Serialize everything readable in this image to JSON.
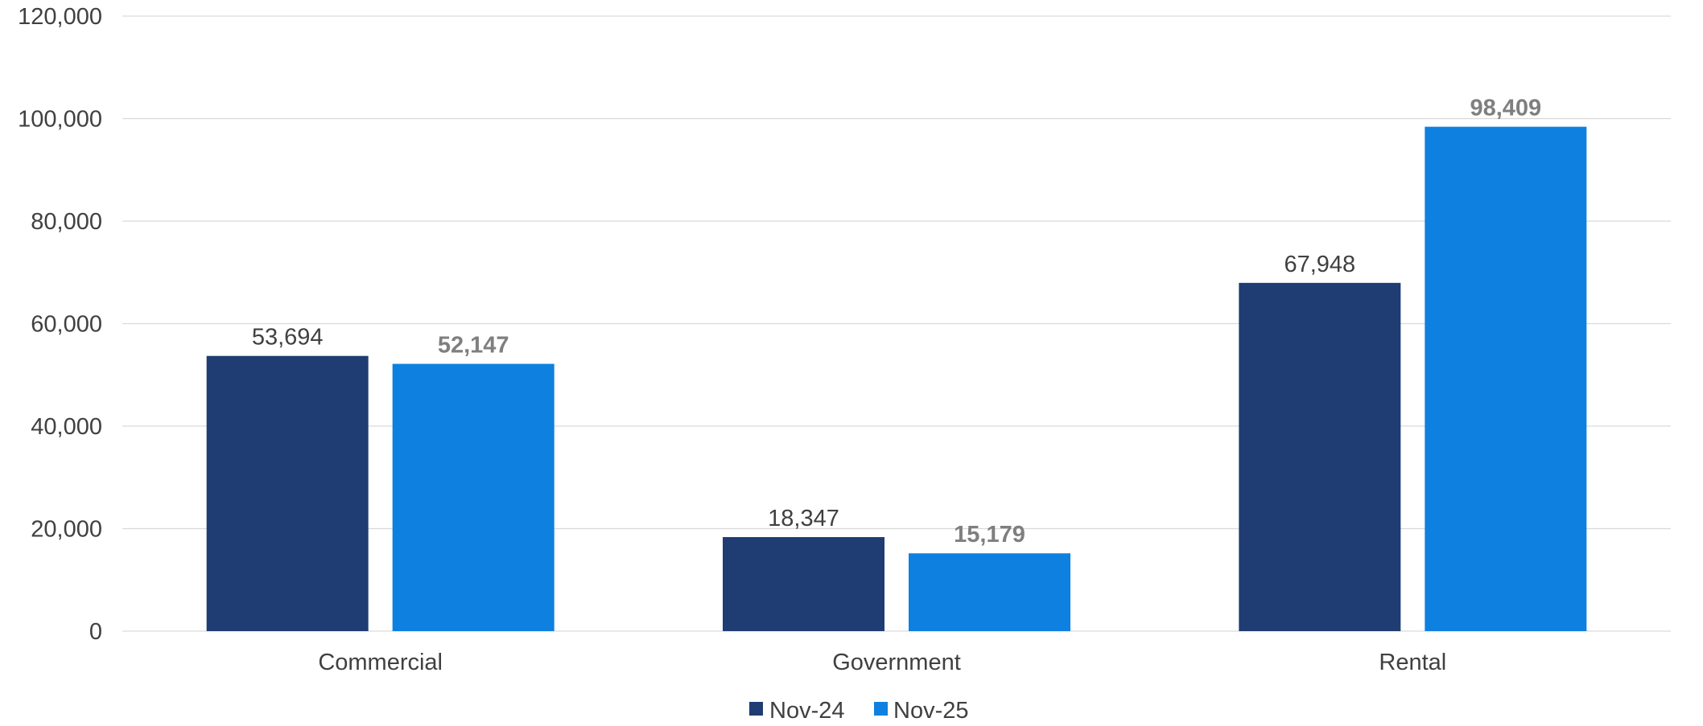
{
  "chart_data": {
    "type": "bar",
    "title": "",
    "xlabel": "",
    "ylabel": "",
    "categories": [
      "Commercial",
      "Government",
      "Rental"
    ],
    "series": [
      {
        "name": "Nov-24",
        "values": [
          53694,
          18347,
          67948
        ],
        "color": "#1F3C73",
        "label_style": "normal"
      },
      {
        "name": "Nov-25",
        "values": [
          52147,
          15179,
          98409
        ],
        "color": "#0E80E0",
        "label_style": "bold"
      }
    ],
    "ylim": [
      0,
      120000
    ],
    "yticks": [
      0,
      20000,
      40000,
      60000,
      80000,
      100000,
      120000
    ],
    "ytick_labels": [
      "0",
      "20,000",
      "40,000",
      "60,000",
      "80,000",
      "100,000",
      "120,000"
    ],
    "data_labels": [
      [
        "53,694",
        "18,347",
        "67,948"
      ],
      [
        "52,147",
        "15,179",
        "98,409"
      ]
    ],
    "grid": true,
    "legend_position": "bottom-center",
    "colors": {
      "grid": "#D9D9D9",
      "text": "#404040",
      "bold_label": "#7F7F7F"
    }
  }
}
